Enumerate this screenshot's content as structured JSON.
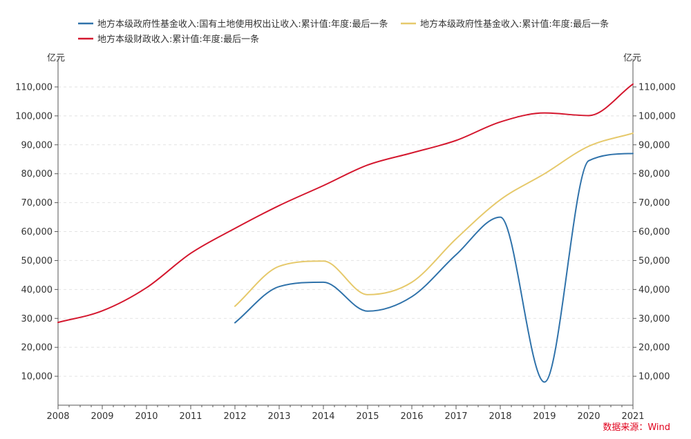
{
  "colors": {
    "land": "#2f72aa",
    "fund": "#e6c96b",
    "fiscal": "#d4172e",
    "source": "#e0001b",
    "grid": "#e2e2e2",
    "axis": "#555555"
  },
  "source": "数据来源：Wind",
  "chart_data": {
    "type": "line",
    "x": [
      2008,
      2009,
      2010,
      2011,
      2012,
      2013,
      2014,
      2015,
      2016,
      2017,
      2018,
      2019,
      2020,
      2021
    ],
    "xlim": [
      2008,
      2021
    ],
    "ylim": [
      0,
      115000
    ],
    "yticks": [
      10000,
      20000,
      30000,
      40000,
      50000,
      60000,
      70000,
      80000,
      90000,
      100000,
      110000
    ],
    "ytick_labels": [
      "10,000",
      "20,000",
      "30,000",
      "40,000",
      "50,000",
      "60,000",
      "70,000",
      "80,000",
      "90,000",
      "100,000",
      "110,000"
    ],
    "xtick_labels": [
      "2008",
      "2009",
      "2010",
      "2011",
      "2012",
      "2013",
      "2014",
      "2015",
      "2016",
      "2017",
      "2018",
      "2019",
      "2020",
      "2021"
    ],
    "ylabel_left": "亿元",
    "ylabel_right": "亿元",
    "grid": "horizontal dashed",
    "legend_position": "top",
    "series": [
      {
        "name": "地方本级政府性基金收入:国有土地使用权出让收入:累计值:年度:最后一条",
        "color_key": "land",
        "points": [
          [
            2012,
            28500
          ],
          [
            2013,
            41000
          ],
          [
            2014,
            42500
          ],
          [
            2015,
            32500
          ],
          [
            2016,
            37500
          ],
          [
            2017,
            52000
          ],
          [
            2018,
            65000
          ],
          [
            2019,
            8000
          ],
          [
            2020,
            84500
          ],
          [
            2021,
            87000
          ]
        ]
      },
      {
        "name": "地方本级政府性基金收入:累计值:年度:最后一条",
        "color_key": "fund",
        "points": [
          [
            2012,
            34200
          ],
          [
            2013,
            48000
          ],
          [
            2014,
            49800
          ],
          [
            2015,
            38200
          ],
          [
            2016,
            42500
          ],
          [
            2017,
            57500
          ],
          [
            2018,
            71000
          ],
          [
            2019,
            80000
          ],
          [
            2020,
            89500
          ],
          [
            2021,
            94000
          ]
        ]
      },
      {
        "name": "地方本级财政收入:累计值:年度:最后一条",
        "color_key": "fiscal",
        "points": [
          [
            2008,
            28600
          ],
          [
            2009,
            32600
          ],
          [
            2010,
            40600
          ],
          [
            2011,
            52500
          ],
          [
            2012,
            61100
          ],
          [
            2013,
            69000
          ],
          [
            2014,
            75900
          ],
          [
            2015,
            83000
          ],
          [
            2016,
            87200
          ],
          [
            2017,
            91500
          ],
          [
            2018,
            97900
          ],
          [
            2019,
            101000
          ],
          [
            2020,
            100100
          ],
          [
            2021,
            111000
          ]
        ]
      }
    ]
  }
}
